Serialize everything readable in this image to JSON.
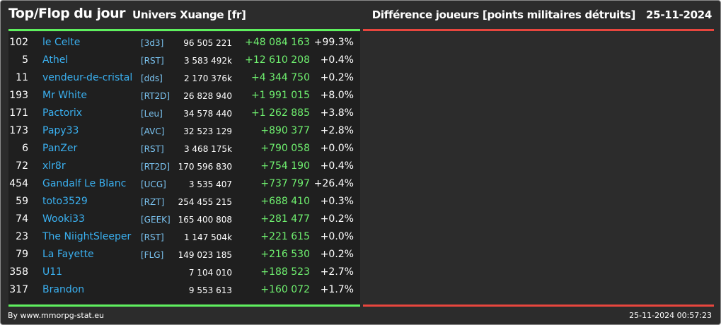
{
  "header": {
    "title": "Top/Flop du jour",
    "universe": "Univers Xuange [fr]",
    "metric": "Différence joueurs [points militaires détruits]",
    "date": "25-11-2024"
  },
  "colors": {
    "background": "#2c2c2c",
    "table_background": "#1f1f1f",
    "top_accent": "#5ef05e",
    "flop_accent": "#e8463e",
    "player_name": "#3ab0f0",
    "alliance_tag": "#7cc6f4",
    "positive_diff": "#6ff06f"
  },
  "top_table": {
    "rows": [
      {
        "rank": "102",
        "name": "le Celte",
        "alliance": "[3d3]",
        "points": "96 505 221",
        "diff": "+48 084 163",
        "pct": "+99.3%"
      },
      {
        "rank": "5",
        "name": "Athel",
        "alliance": "[RST]",
        "points": "3 583 492k",
        "diff": "+12 610 208",
        "pct": "+0.4%"
      },
      {
        "rank": "11",
        "name": "vendeur-de-cristal",
        "alliance": "[dds]",
        "points": "2 170 376k",
        "diff": "+4 344 750",
        "pct": "+0.2%"
      },
      {
        "rank": "193",
        "name": "Mr White",
        "alliance": "[RT2D]",
        "points": "26 828 940",
        "diff": "+1 991 015",
        "pct": "+8.0%"
      },
      {
        "rank": "171",
        "name": "Pactorix",
        "alliance": "[Leu]",
        "points": "34 578 440",
        "diff": "+1 262 885",
        "pct": "+3.8%"
      },
      {
        "rank": "173",
        "name": "Papy33",
        "alliance": "[AVC]",
        "points": "32 523 129",
        "diff": "+890 377",
        "pct": "+2.8%"
      },
      {
        "rank": "6",
        "name": "PanZer",
        "alliance": "[RST]",
        "points": "3 468 175k",
        "diff": "+790 058",
        "pct": "+0.0%"
      },
      {
        "rank": "72",
        "name": "xlr8r",
        "alliance": "[RT2D]",
        "points": "170 596 830",
        "diff": "+754 190",
        "pct": "+0.4%"
      },
      {
        "rank": "454",
        "name": "Gandalf Le Blanc",
        "alliance": "[UCG]",
        "points": "3 535 407",
        "diff": "+737 797",
        "pct": "+26.4%"
      },
      {
        "rank": "59",
        "name": "toto3529",
        "alliance": "[RZT]",
        "points": "254 455 215",
        "diff": "+688 410",
        "pct": "+0.3%"
      },
      {
        "rank": "74",
        "name": "Wooki33",
        "alliance": "[GEEK]",
        "points": "165 400 808",
        "diff": "+281 477",
        "pct": "+0.2%"
      },
      {
        "rank": "23",
        "name": "The NiightSleeper",
        "alliance": "[RST]",
        "points": "1 147 504k",
        "diff": "+221 615",
        "pct": "+0.0%"
      },
      {
        "rank": "79",
        "name": "La Fayette",
        "alliance": "[FLG]",
        "points": "149 023 185",
        "diff": "+216 530",
        "pct": "+0.2%"
      },
      {
        "rank": "358",
        "name": "U11",
        "alliance": "",
        "points": "7 104 010",
        "diff": "+188 523",
        "pct": "+2.7%"
      },
      {
        "rank": "317",
        "name": "Brandon",
        "alliance": "",
        "points": "9 553 613",
        "diff": "+160 072",
        "pct": "+1.7%"
      }
    ]
  },
  "footer": {
    "credit": "By www.mmorpg-stat.eu",
    "timestamp": "25-11-2024 00:57:23"
  }
}
